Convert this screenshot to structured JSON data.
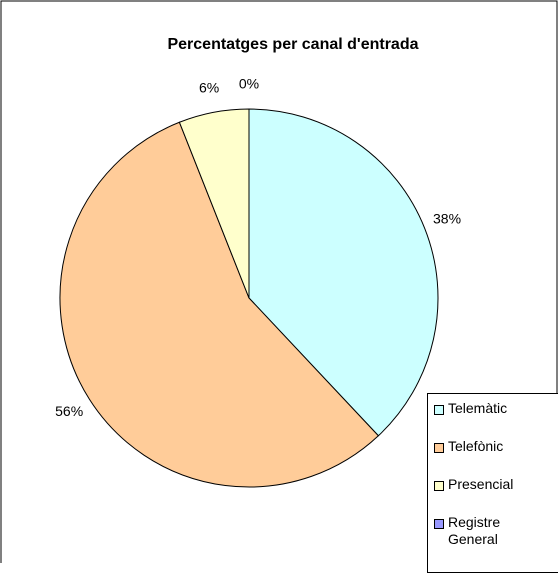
{
  "chart_data": {
    "type": "pie",
    "title": "Percentatges per canal d'entrada",
    "categories": [
      "Telemàtic",
      "Telefònic",
      "Presencial",
      "Registre General"
    ],
    "values": [
      38,
      56,
      6,
      0
    ],
    "value_labels": [
      "38%",
      "56%",
      "6%",
      "0%"
    ],
    "colors": [
      "#ccffff",
      "#ffcc99",
      "#ffffcc",
      "#9999ff"
    ],
    "legend": "right"
  }
}
